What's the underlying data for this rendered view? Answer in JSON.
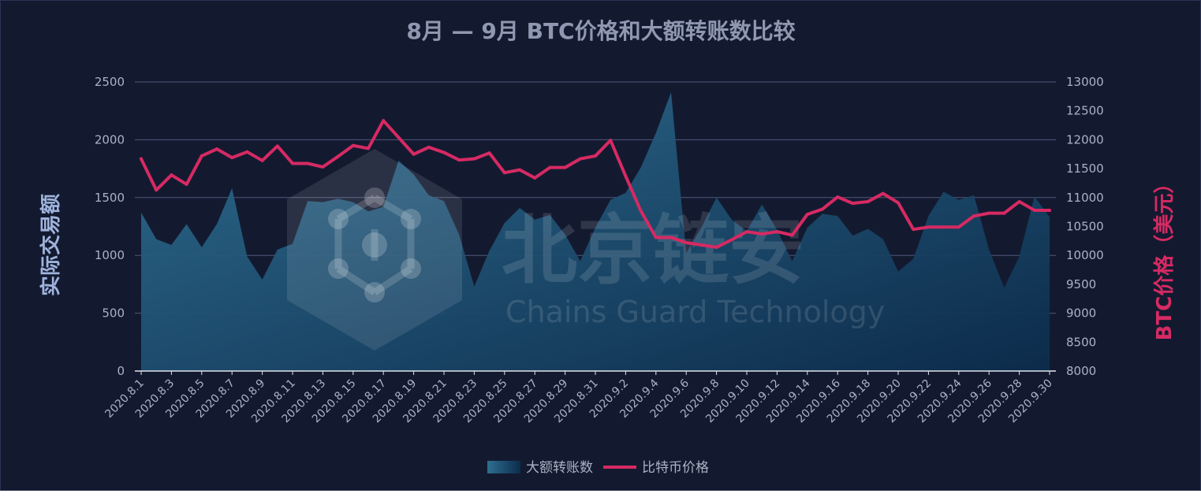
{
  "chart_data": {
    "type": "area+line",
    "title": "8月 — 9月 BTC价格和大额转账数比较",
    "categories": [
      "2020.8.1",
      "2020.8.2",
      "2020.8.3",
      "2020.8.4",
      "2020.8.5",
      "2020.8.6",
      "2020.8.7",
      "2020.8.8",
      "2020.8.9",
      "2020.8.10",
      "2020.8.11",
      "2020.8.12",
      "2020.8.13",
      "2020.8.14",
      "2020.8.15",
      "2020.8.16",
      "2020.8.17",
      "2020.8.18",
      "2020.8.19",
      "2020.8.20",
      "2020.8.21",
      "2020.8.22",
      "2020.8.23",
      "2020.8.24",
      "2020.8.25",
      "2020.8.26",
      "2020.8.27",
      "2020.8.28",
      "2020.8.29",
      "2020.8.30",
      "2020.8.31",
      "2020.9.1",
      "2020.9.2",
      "2020.9.3",
      "2020.9.4",
      "2020.9.5",
      "2020.9.6",
      "2020.9.7",
      "2020.9.8",
      "2020.9.9",
      "2020.9.10",
      "2020.9.11",
      "2020.9.12",
      "2020.9.13",
      "2020.9.14",
      "2020.9.15",
      "2020.9.16",
      "2020.9.17",
      "2020.9.18",
      "2020.9.19",
      "2020.9.20",
      "2020.9.21",
      "2020.9.22",
      "2020.9.23",
      "2020.9.24",
      "2020.9.25",
      "2020.9.26",
      "2020.9.27",
      "2020.9.28",
      "2020.9.29",
      "2020.9.30"
    ],
    "x_tick_labels": [
      "2020.8.1",
      "2020.8.3",
      "2020.8.5",
      "2020.8.7",
      "2020.8.9",
      "2020.8.11",
      "2020.8.13",
      "2020.8.15",
      "2020.8.17",
      "2020.8.19",
      "2020.8.21",
      "2020.8.23",
      "2020.8.25",
      "2020.8.27",
      "2020.8.29",
      "2020.8.31",
      "2020.9.2",
      "2020.9.4",
      "2020.9.6",
      "2020.9.8",
      "2020.9.10",
      "2020.9.12",
      "2020.9.14",
      "2020.9.16",
      "2020.9.18",
      "2020.9.20",
      "2020.9.22",
      "2020.9.24",
      "2020.9.26",
      "2020.9.28",
      "2020.9.30"
    ],
    "series": [
      {
        "name": "大额转账数",
        "type": "area",
        "axis": "left",
        "values": [
          1370,
          1140,
          1090,
          1270,
          1070,
          1270,
          1580,
          990,
          790,
          1050,
          1100,
          1470,
          1460,
          1490,
          1460,
          1380,
          1420,
          1820,
          1700,
          1520,
          1470,
          1180,
          730,
          1040,
          1280,
          1410,
          1310,
          1350,
          1180,
          950,
          1240,
          1480,
          1540,
          1760,
          2060,
          2410,
          1020,
          1240,
          1500,
          1310,
          1210,
          1440,
          1220,
          950,
          1240,
          1360,
          1340,
          1170,
          1230,
          1140,
          860,
          970,
          1340,
          1550,
          1480,
          1520,
          1050,
          720,
          990,
          1510,
          1330
        ],
        "color": "#2a6a90"
      },
      {
        "name": "比特币价格",
        "type": "line",
        "axis": "right",
        "values": [
          11670,
          11130,
          11390,
          11230,
          11720,
          11840,
          11690,
          11790,
          11640,
          11890,
          11590,
          11590,
          11530,
          11710,
          11900,
          11850,
          12330,
          12040,
          11750,
          11870,
          11780,
          11650,
          11670,
          11770,
          11430,
          11480,
          11340,
          11520,
          11520,
          11670,
          11720,
          11990,
          11370,
          10770,
          10310,
          10310,
          10220,
          10180,
          10140,
          10270,
          10410,
          10370,
          10410,
          10350,
          10710,
          10800,
          11010,
          10900,
          10930,
          11070,
          10910,
          10450,
          10490,
          10490,
          10490,
          10680,
          10730,
          10730,
          10930,
          10780,
          10780
        ],
        "color": "#d62a63"
      }
    ],
    "y_left": {
      "label": "实际交易额",
      "min": 0,
      "max": 2500,
      "ticks": [
        0,
        500,
        1000,
        1500,
        2000,
        2500
      ]
    },
    "y_right": {
      "label": "BTC价格（美元）",
      "min": 8000,
      "max": 13000,
      "ticks": [
        8000,
        8500,
        9000,
        9500,
        10000,
        10500,
        11000,
        11500,
        12000,
        12500,
        13000
      ]
    },
    "grid": true,
    "legend_position": "bottom-center",
    "watermark": {
      "cn": "北京链安",
      "en": "Chains Guard Technology"
    },
    "colors": {
      "background": "#131a30",
      "grid": "#5a6380",
      "area_top": "#2a6a90",
      "area_bottom": "#0d3050",
      "line": "#d62a63"
    }
  }
}
